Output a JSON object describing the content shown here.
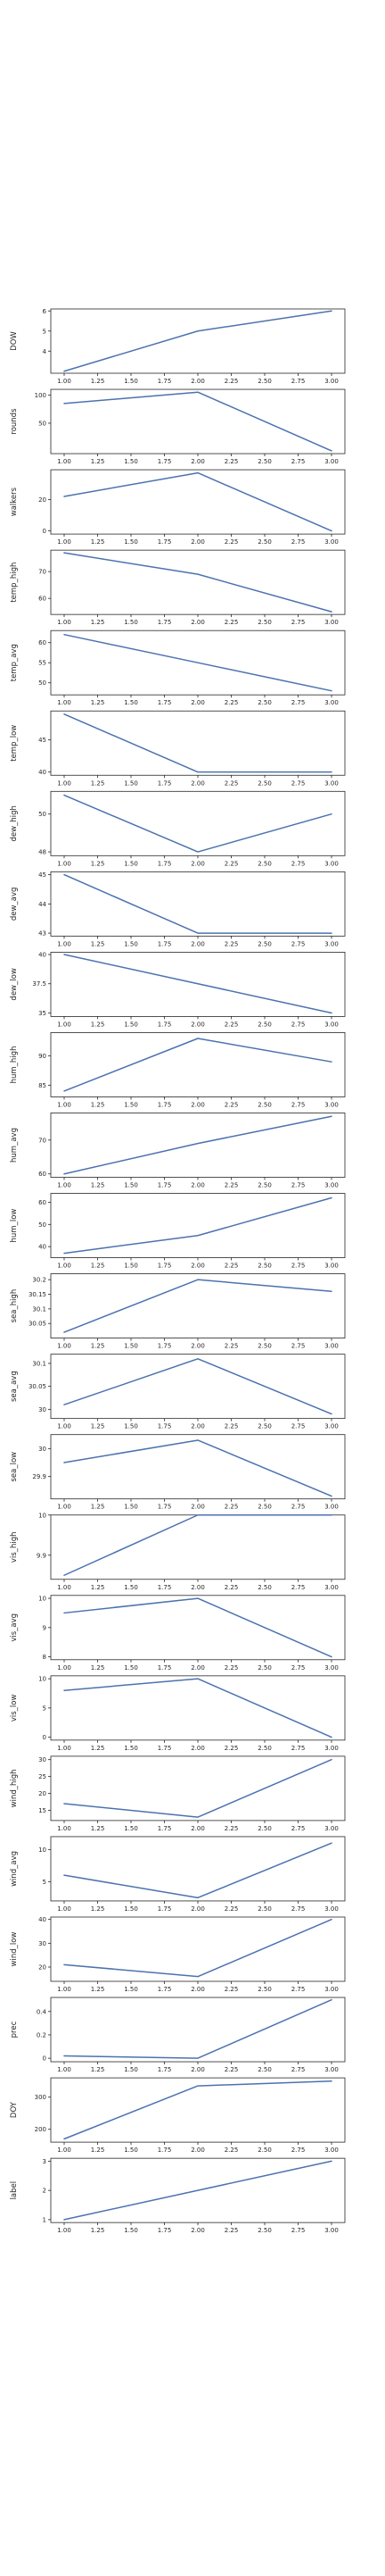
{
  "chart_data": [
    {
      "type": "line",
      "ylabel": "DOW",
      "x": [
        1,
        2,
        3
      ],
      "values": [
        3,
        5,
        6
      ],
      "ylim": [
        2.9,
        6.1
      ],
      "yticks": [
        4,
        5,
        6
      ]
    },
    {
      "type": "line",
      "ylabel": "rounds",
      "x": [
        1,
        2,
        3
      ],
      "values": [
        85,
        105,
        1
      ],
      "ylim": [
        -4,
        110
      ],
      "yticks": [
        50,
        100
      ]
    },
    {
      "type": "line",
      "ylabel": "walkers",
      "x": [
        1,
        2,
        3
      ],
      "values": [
        22,
        37,
        0
      ],
      "ylim": [
        -2,
        39
      ],
      "yticks": [
        0,
        20
      ]
    },
    {
      "type": "line",
      "ylabel": "temp_high",
      "x": [
        1,
        2,
        3
      ],
      "values": [
        77,
        69,
        55
      ],
      "ylim": [
        54,
        78
      ],
      "yticks": [
        60,
        70
      ]
    },
    {
      "type": "line",
      "ylabel": "temp_avg",
      "x": [
        1,
        2,
        3
      ],
      "values": [
        62,
        55,
        48
      ],
      "ylim": [
        47,
        63
      ],
      "yticks": [
        50,
        55,
        60
      ]
    },
    {
      "type": "line",
      "ylabel": "temp_low",
      "x": [
        1,
        2,
        3
      ],
      "values": [
        49,
        40,
        40
      ],
      "ylim": [
        39.5,
        49.5
      ],
      "yticks": [
        40,
        45
      ]
    },
    {
      "type": "line",
      "ylabel": "dew_high",
      "x": [
        1,
        2,
        3
      ],
      "values": [
        51,
        48,
        50
      ],
      "ylim": [
        47.8,
        51.2
      ],
      "yticks": [
        48,
        50
      ]
    },
    {
      "type": "line",
      "ylabel": "dew_avg",
      "x": [
        1,
        2,
        3
      ],
      "values": [
        45,
        43,
        43
      ],
      "ylim": [
        42.9,
        45.1
      ],
      "yticks": [
        43,
        44,
        45
      ]
    },
    {
      "type": "line",
      "ylabel": "dew_low",
      "x": [
        1,
        2,
        3
      ],
      "values": [
        40,
        37.5,
        35
      ],
      "ylim": [
        34.7,
        40.2
      ],
      "yticks": [
        35,
        37.5,
        40
      ]
    },
    {
      "type": "line",
      "ylabel": "hum_high",
      "x": [
        1,
        2,
        3
      ],
      "values": [
        84,
        93,
        89
      ],
      "ylim": [
        83,
        94
      ],
      "yticks": [
        85,
        90
      ]
    },
    {
      "type": "line",
      "ylabel": "hum_avg",
      "x": [
        1,
        2,
        3
      ],
      "values": [
        60,
        69,
        77
      ],
      "ylim": [
        59,
        78
      ],
      "yticks": [
        60,
        70
      ]
    },
    {
      "type": "line",
      "ylabel": "hum_low",
      "x": [
        1,
        2,
        3
      ],
      "values": [
        37,
        45,
        62
      ],
      "ylim": [
        35,
        64
      ],
      "yticks": [
        40,
        50,
        60
      ]
    },
    {
      "type": "line",
      "ylabel": "sea_high",
      "x": [
        1,
        2,
        3
      ],
      "values": [
        30.02,
        30.2,
        30.16
      ],
      "ylim": [
        30.0,
        30.22
      ],
      "yticks": [
        30.05,
        30.1,
        30.15,
        30.2
      ]
    },
    {
      "type": "line",
      "ylabel": "sea_avg",
      "x": [
        1,
        2,
        3
      ],
      "values": [
        30.01,
        30.11,
        29.99
      ],
      "ylim": [
        29.98,
        30.12
      ],
      "yticks": [
        30.0,
        30.05,
        30.1
      ]
    },
    {
      "type": "line",
      "ylabel": "sea_low",
      "x": [
        1,
        2,
        3
      ],
      "values": [
        29.95,
        30.03,
        29.83
      ],
      "ylim": [
        29.82,
        30.05
      ],
      "yticks": [
        29.9,
        30.0
      ]
    },
    {
      "type": "line",
      "ylabel": "vis_high",
      "x": [
        1,
        2,
        3
      ],
      "values": [
        9.85,
        10.0,
        10.0
      ],
      "ylim": [
        9.84,
        10.0
      ],
      "yticks": [
        9.9,
        10.0
      ]
    },
    {
      "type": "line",
      "ylabel": "vis_avg",
      "x": [
        1,
        2,
        3
      ],
      "values": [
        9.5,
        10.0,
        8.0
      ],
      "ylim": [
        7.9,
        10.1
      ],
      "yticks": [
        8,
        9,
        10
      ]
    },
    {
      "type": "line",
      "ylabel": "vis_low",
      "x": [
        1,
        2,
        3
      ],
      "values": [
        8,
        10,
        0
      ],
      "ylim": [
        -0.5,
        10.5
      ],
      "yticks": [
        0,
        5,
        10
      ]
    },
    {
      "type": "line",
      "ylabel": "wind_high",
      "x": [
        1,
        2,
        3
      ],
      "values": [
        17,
        13,
        30
      ],
      "ylim": [
        12,
        31
      ],
      "yticks": [
        15,
        20,
        25,
        30
      ]
    },
    {
      "type": "line",
      "ylabel": "wind_avg",
      "x": [
        1,
        2,
        3
      ],
      "values": [
        6,
        2.5,
        11
      ],
      "ylim": [
        2,
        12
      ],
      "yticks": [
        5,
        10
      ]
    },
    {
      "type": "line",
      "ylabel": "wind_low",
      "x": [
        1,
        2,
        3
      ],
      "values": [
        21,
        16,
        40
      ],
      "ylim": [
        14,
        41
      ],
      "yticks": [
        20,
        30,
        40
      ]
    },
    {
      "type": "line",
      "ylabel": "prec",
      "x": [
        1,
        2,
        3
      ],
      "values": [
        0.02,
        0.0,
        0.5
      ],
      "ylim": [
        -0.03,
        0.52
      ],
      "yticks": [
        0.0,
        0.2,
        0.4
      ]
    },
    {
      "type": "line",
      "ylabel": "DOY",
      "x": [
        1,
        2,
        3
      ],
      "values": [
        170,
        335,
        350
      ],
      "ylim": [
        160,
        360
      ],
      "yticks": [
        200,
        300
      ]
    },
    {
      "type": "line",
      "ylabel": "label",
      "x": [
        1,
        2,
        3
      ],
      "values": [
        1,
        2,
        3
      ],
      "ylim": [
        0.9,
        3.1
      ],
      "yticks": [
        1,
        2,
        3
      ]
    }
  ],
  "x_axis": {
    "ticks": [
      1.0,
      1.25,
      1.5,
      1.75,
      2.0,
      2.25,
      2.5,
      2.75,
      3.0
    ],
    "tick_labels": [
      "1.00",
      "1.25",
      "1.50",
      "1.75",
      "2.00",
      "2.25",
      "2.50",
      "2.75",
      "3.00"
    ],
    "xlim": [
      0.9,
      3.1
    ]
  },
  "style": {
    "line_color": "#4c72b0",
    "axes_color": "#262626",
    "background": "#ffffff"
  }
}
